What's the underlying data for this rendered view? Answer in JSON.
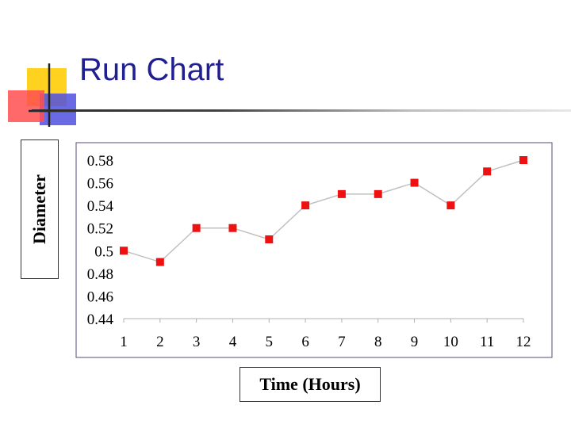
{
  "page": {
    "title": "Run Chart"
  },
  "theme": {
    "title_color": "#1f1f8f",
    "marker_color": "#ee1111",
    "line_color": "#c0c0c0",
    "frame_color": "#5a4a78",
    "deco_yellow": "#ffd21f",
    "deco_red": "#ff4f4f",
    "deco_blue": "#5050e0"
  },
  "chart_data": {
    "type": "line",
    "title": "",
    "xlabel": "Time (Hours)",
    "ylabel": "Diameter",
    "x": [
      1,
      2,
      3,
      4,
      5,
      6,
      7,
      8,
      9,
      10,
      11,
      12
    ],
    "series": [
      {
        "values": [
          0.5,
          0.49,
          0.52,
          0.52,
          0.51,
          0.54,
          0.55,
          0.55,
          0.56,
          0.54,
          0.57,
          0.58
        ]
      }
    ],
    "ylim": [
      0.44,
      0.58
    ],
    "yticks": [
      0.44,
      0.46,
      0.48,
      0.5,
      0.52,
      0.54,
      0.56,
      0.58
    ],
    "ytick_labels": [
      "0.44",
      "0.46",
      "0.48",
      "0.5",
      "0.52",
      "0.54",
      "0.56",
      "0.58"
    ],
    "xtick_labels": [
      "1",
      "2",
      "3",
      "4",
      "5",
      "6",
      "7",
      "8",
      "9",
      "10",
      "11",
      "12"
    ],
    "grid": false,
    "legend": "none",
    "marker": "square"
  }
}
